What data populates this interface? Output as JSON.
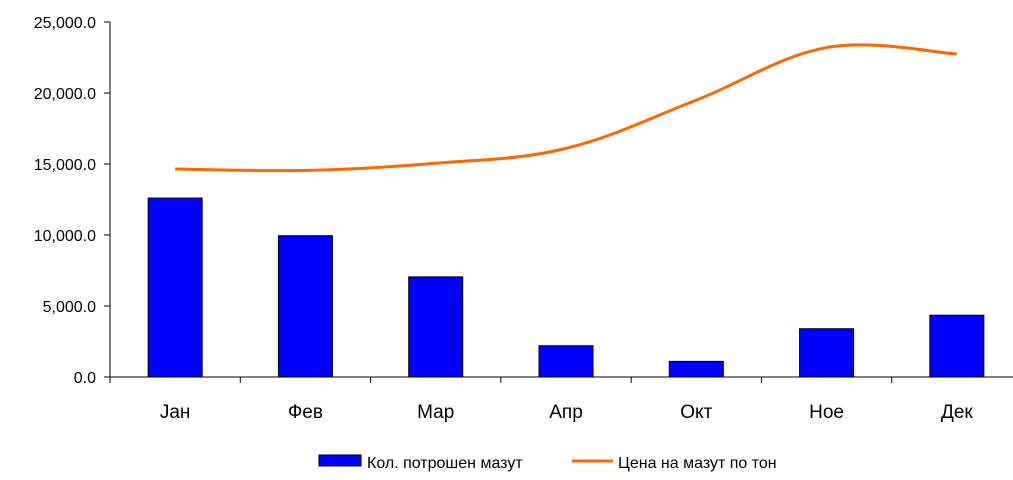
{
  "chart_data": {
    "type": "bar",
    "title": "",
    "xlabel": "",
    "ylabel": "",
    "categories": [
      "Јан",
      "Фев",
      "Мар",
      "Апр",
      "Окт",
      "Ное",
      "Дек"
    ],
    "ylim": [
      0,
      25000
    ],
    "yticks": [
      0,
      5000,
      10000,
      15000,
      20000,
      25000
    ],
    "ytick_labels": [
      "0.0",
      "5,000.0",
      "10,000.0",
      "15,000.0",
      "20,000.0",
      "25,000.0"
    ],
    "grid": false,
    "legend_position": "bottom",
    "series": [
      {
        "name": "Кол. потрошен мазут",
        "type": "bar",
        "color": "#0000ff",
        "values": [
          12600,
          9950,
          7050,
          2200,
          1100,
          3400,
          4350
        ]
      },
      {
        "name": "Цена на мазут по тон",
        "type": "line",
        "color": "#ff6600",
        "values": [
          14650,
          14550,
          15050,
          16100,
          19500,
          23200,
          22750
        ]
      }
    ]
  }
}
